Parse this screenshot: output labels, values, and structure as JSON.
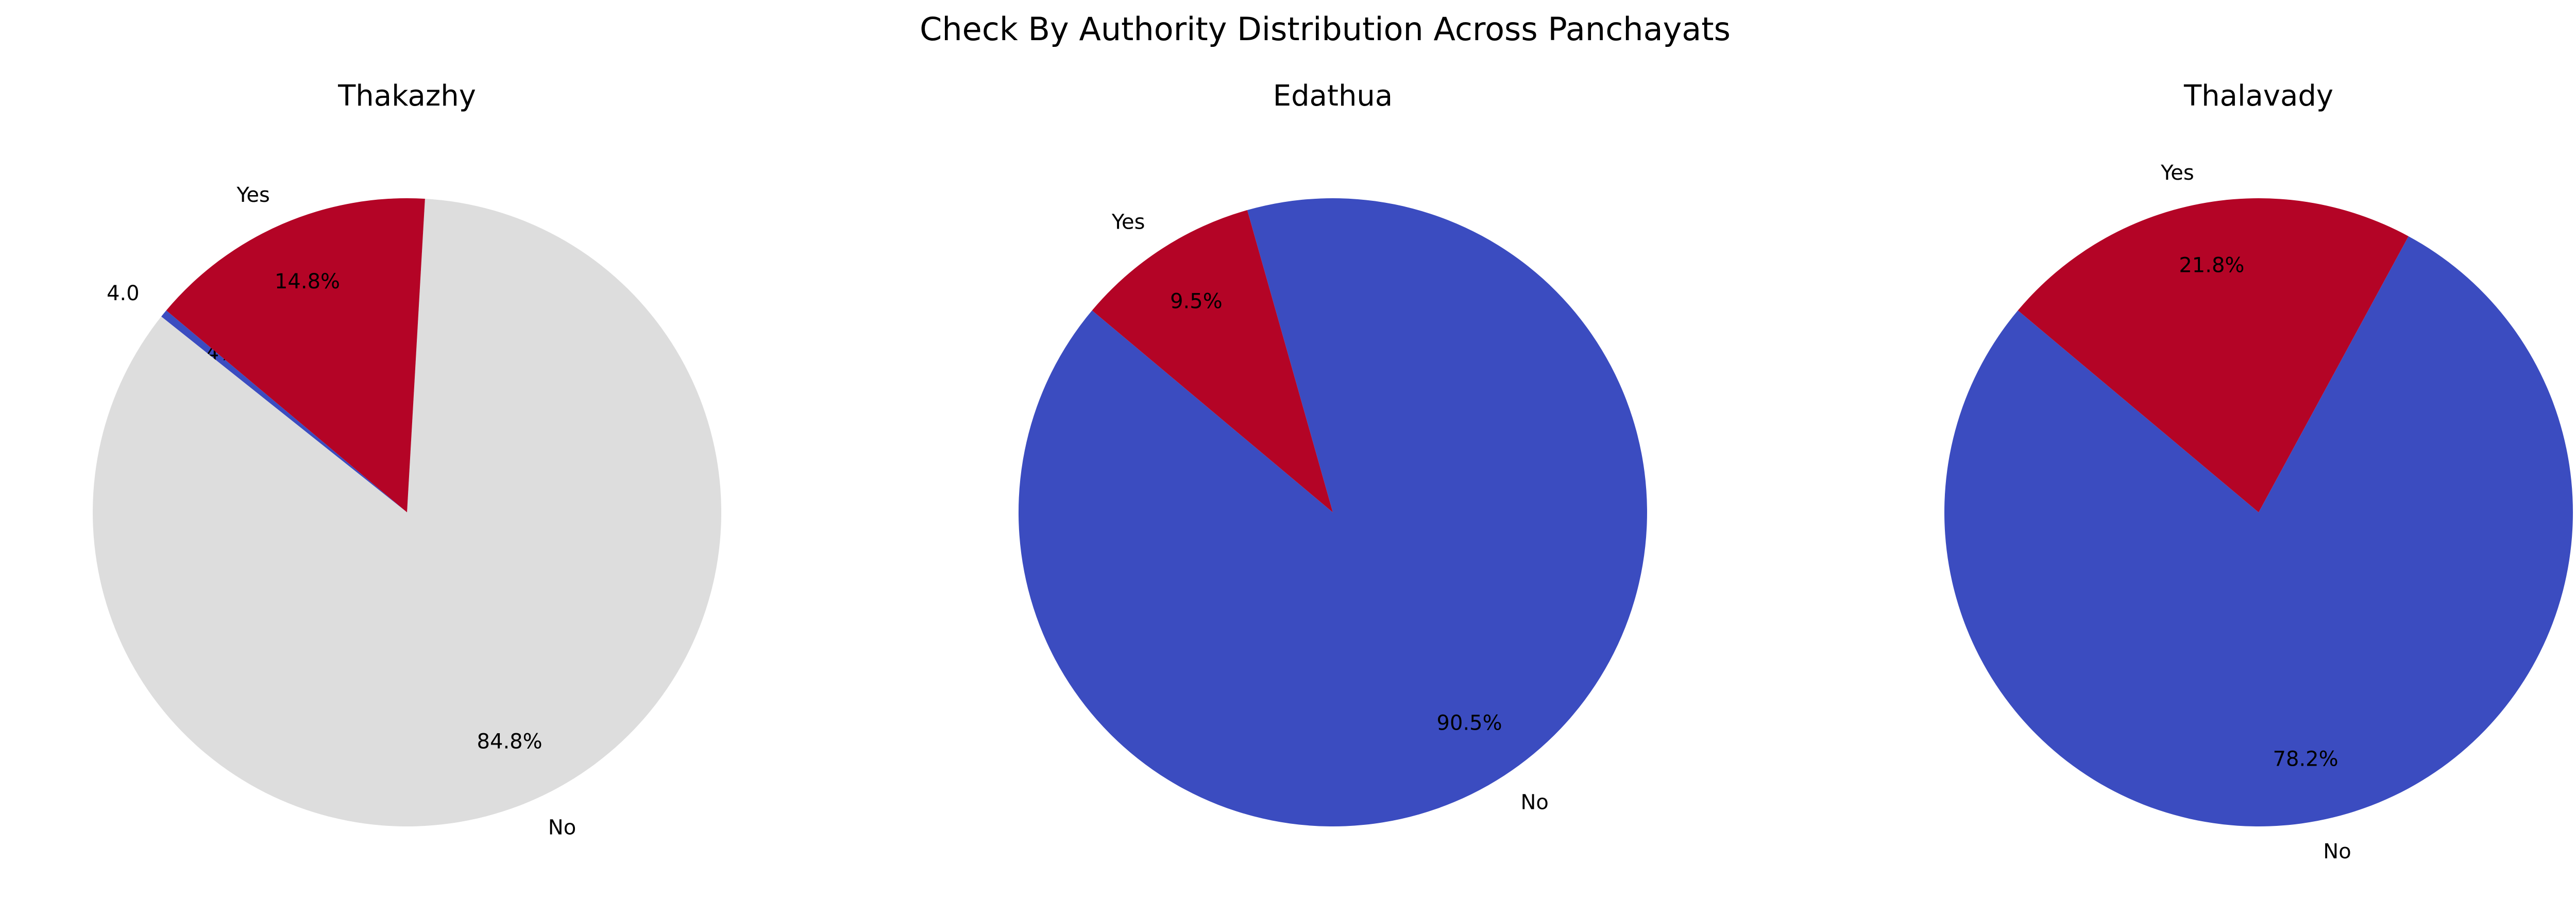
{
  "chart_data": {
    "type": "pie",
    "title": "Check By Authority Distribution Across Panchayats",
    "start_angle": 140,
    "direction": "counterclockwise",
    "colors": {
      "4.0": "#3b4cc0",
      "Yes": "#b40426",
      "No": "#dddddd"
    },
    "pies": [
      {
        "title": "Thakazhy",
        "slices": [
          {
            "label": "4.0",
            "percent": 0.4,
            "pct_text": "0.4%",
            "color": "#3b4cc0"
          },
          {
            "label": "No",
            "percent": 84.8,
            "pct_text": "84.8%",
            "color": "#dddddd"
          },
          {
            "label": "Yes",
            "percent": 14.8,
            "pct_text": "14.8%",
            "color": "#b40426"
          }
        ]
      },
      {
        "title": "Edathua",
        "slices": [
          {
            "label": "No",
            "percent": 90.5,
            "pct_text": "90.5%",
            "color": "#3b4cc0"
          },
          {
            "label": "Yes",
            "percent": 9.5,
            "pct_text": "9.5%",
            "color": "#b40426"
          }
        ]
      },
      {
        "title": "Thalavady",
        "slices": [
          {
            "label": "No",
            "percent": 78.2,
            "pct_text": "78.2%",
            "color": "#3b4cc0"
          },
          {
            "label": "Yes",
            "percent": 21.8,
            "pct_text": "21.8%",
            "color": "#b40426"
          }
        ]
      }
    ]
  }
}
